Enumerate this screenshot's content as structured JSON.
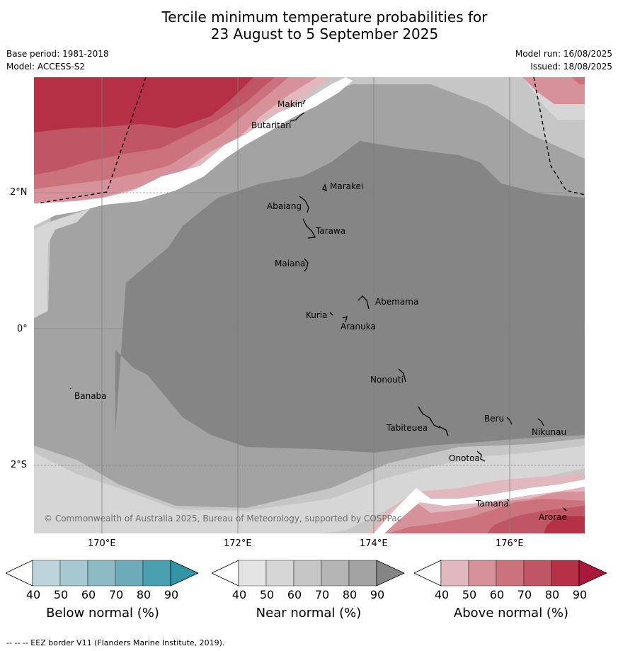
{
  "title": {
    "line1": "Tercile minimum temperature probabilities for",
    "line2": "23 August to 5 September 2025"
  },
  "meta": {
    "base_period": "Base period: 1981-2018",
    "model": "Model: ACCESS-S2",
    "model_run": "Model run: 16/08/2025",
    "issued": "Issued: 18/08/2025"
  },
  "map": {
    "copyright": "© Commonwealth of Australia 2025, Bureau of Meteorology, supported by COSPPac",
    "lat_labels": [
      "2°N",
      "0°",
      "2°S"
    ],
    "lon_labels": [
      "170°E",
      "172°E",
      "174°E",
      "176°E"
    ],
    "places": [
      "Makin",
      "Butaritari",
      "Marakei",
      "Abaiang",
      "Tarawa",
      "Maiana",
      "Abemama",
      "Kuria",
      "Aranuka",
      "Nonouti",
      "Banaba",
      "Beru",
      "Tabiteuea",
      "Nikunau",
      "Onotoa",
      "Tamana",
      "Arorae"
    ]
  },
  "colorbars": [
    {
      "name": "below",
      "title": "Below normal (%)",
      "ticks": [
        "40",
        "50",
        "60",
        "70",
        "80",
        "90"
      ],
      "colors": [
        "#ffffff",
        "#bcd5dc",
        "#a6c9d1",
        "#8cbac5",
        "#6eabb8",
        "#4aa0b0",
        "#3193a6"
      ]
    },
    {
      "name": "near",
      "title": "Near normal (%)",
      "ticks": [
        "40",
        "50",
        "60",
        "70",
        "80",
        "90"
      ],
      "colors": [
        "#ffffff",
        "#e4e4e4",
        "#d6d6d6",
        "#c6c6c6",
        "#b4b4b4",
        "#a3a3a3",
        "#858585"
      ]
    },
    {
      "name": "above",
      "title": "Above normal (%)",
      "ticks": [
        "40",
        "50",
        "60",
        "70",
        "80",
        "90"
      ],
      "colors": [
        "#ffffff",
        "#e2b8bf",
        "#d6919a",
        "#cb727c",
        "#c05565",
        "#b63045",
        "#a9183a"
      ]
    }
  ],
  "footer": "-- -- -- EEZ border V11 (Flanders Marine Institute, 2019)."
}
